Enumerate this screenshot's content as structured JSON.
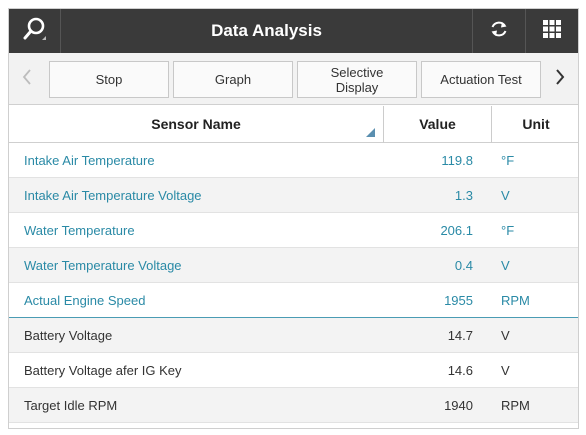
{
  "header": {
    "title": "Data Analysis",
    "icons": {
      "search": "search-icon",
      "refresh": "refresh-icon",
      "grid": "grid-icon"
    }
  },
  "toolbar": {
    "buttons": [
      {
        "label": "Stop"
      },
      {
        "label": "Graph"
      },
      {
        "label": "Selective\nDisplay"
      },
      {
        "label": "Actuation Test"
      }
    ]
  },
  "table": {
    "columns": {
      "name": "Sensor Name",
      "value": "Value",
      "unit": "Unit"
    },
    "rows": [
      {
        "name": "Intake Air Temperature",
        "value": "119.8",
        "unit": "°F"
      },
      {
        "name": "Intake Air Temperature Voltage",
        "value": "1.3",
        "unit": "V"
      },
      {
        "name": "Water Temperature",
        "value": "206.1",
        "unit": "°F"
      },
      {
        "name": "Water Temperature Voltage",
        "value": "0.4",
        "unit": "V"
      },
      {
        "name": "Actual Engine Speed",
        "value": "1955",
        "unit": "RPM"
      },
      {
        "name": "Battery Voltage",
        "value": "14.7",
        "unit": "V"
      },
      {
        "name": "Battery Voltage afer IG Key",
        "value": "14.6",
        "unit": "V"
      },
      {
        "name": "Target Idle RPM",
        "value": "1940",
        "unit": "RPM"
      }
    ]
  },
  "colors": {
    "titlebar": "#3a3a3a",
    "highlight_text": "#2a8aa6",
    "sort_indicator": "#5a8fb0"
  }
}
